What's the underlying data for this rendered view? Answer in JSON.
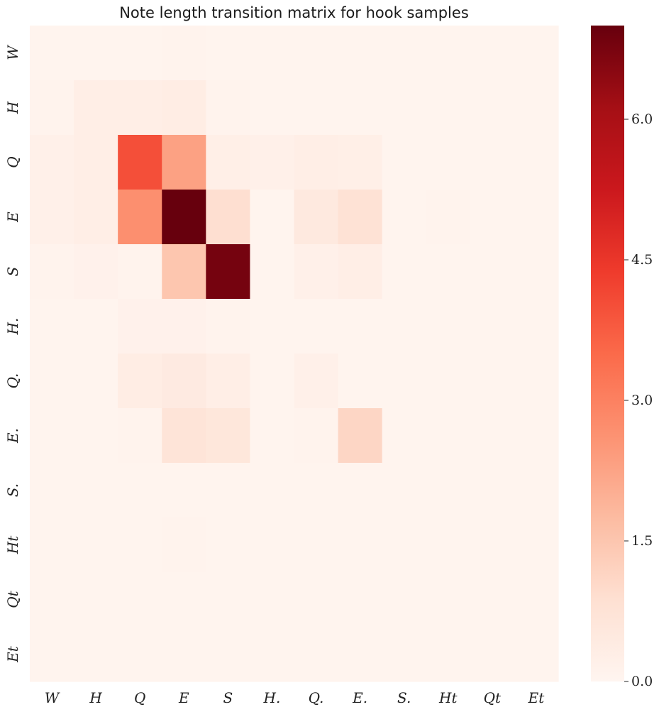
{
  "chart_data": {
    "type": "heatmap",
    "title": "Note length transition matrix for hook samples",
    "xlabel": "",
    "ylabel": "",
    "x_categories": [
      "W",
      "H",
      "Q",
      "E",
      "S",
      "H.",
      "Q.",
      "E.",
      "S.",
      "Ht",
      "Qt",
      "Et"
    ],
    "y_categories": [
      "W",
      "H",
      "Q",
      "E",
      "S",
      "H.",
      "Q.",
      "E.",
      "S.",
      "Ht",
      "Qt",
      "Et"
    ],
    "values": [
      [
        0.05,
        0.05,
        0.05,
        0.1,
        0.05,
        0.05,
        0.05,
        0.05,
        0.05,
        0.05,
        0.05,
        0.05
      ],
      [
        0.1,
        0.3,
        0.3,
        0.35,
        0.1,
        0.05,
        0.05,
        0.05,
        0.05,
        0.05,
        0.05,
        0.05
      ],
      [
        0.2,
        0.3,
        4.0,
        2.3,
        0.25,
        0.2,
        0.3,
        0.25,
        0.05,
        0.05,
        0.05,
        0.05
      ],
      [
        0.2,
        0.3,
        2.7,
        7.0,
        0.9,
        0.05,
        0.5,
        0.8,
        0.05,
        0.1,
        0.05,
        0.05
      ],
      [
        0.1,
        0.15,
        0.1,
        1.5,
        6.8,
        0.05,
        0.2,
        0.3,
        0.05,
        0.05,
        0.05,
        0.05
      ],
      [
        0.05,
        0.05,
        0.15,
        0.15,
        0.1,
        0.05,
        0.05,
        0.05,
        0.05,
        0.05,
        0.05,
        0.05
      ],
      [
        0.05,
        0.05,
        0.35,
        0.45,
        0.3,
        0.05,
        0.2,
        0.05,
        0.05,
        0.05,
        0.05,
        0.05
      ],
      [
        0.05,
        0.05,
        0.1,
        0.7,
        0.6,
        0.05,
        0.1,
        1.1,
        0.05,
        0.05,
        0.05,
        0.05
      ],
      [
        0.05,
        0.05,
        0.05,
        0.05,
        0.05,
        0.05,
        0.05,
        0.05,
        0.05,
        0.05,
        0.05,
        0.05
      ],
      [
        0.05,
        0.05,
        0.05,
        0.1,
        0.05,
        0.05,
        0.05,
        0.05,
        0.05,
        0.05,
        0.05,
        0.05
      ],
      [
        0.05,
        0.05,
        0.05,
        0.05,
        0.05,
        0.05,
        0.05,
        0.05,
        0.05,
        0.05,
        0.05,
        0.05
      ],
      [
        0.05,
        0.05,
        0.05,
        0.05,
        0.05,
        0.05,
        0.05,
        0.05,
        0.05,
        0.05,
        0.05,
        0.05
      ]
    ],
    "vmin": 0.0,
    "vmax": 7.0,
    "colormap": "Reds",
    "colorbar_ticks": [
      0.0,
      1.5,
      3.0,
      4.5,
      6.0
    ],
    "colorbar_tick_labels": [
      "0.0",
      "1.5",
      "3.0",
      "4.5",
      "6.0"
    ],
    "colorbar_stops": [
      "#fff5f0",
      "#fee0d2",
      "#fcbba1",
      "#fc9272",
      "#fb6a4a",
      "#ef3b2c",
      "#cb181d",
      "#a50f15",
      "#67000d"
    ],
    "grid": false,
    "legend": "colorbar-right"
  }
}
